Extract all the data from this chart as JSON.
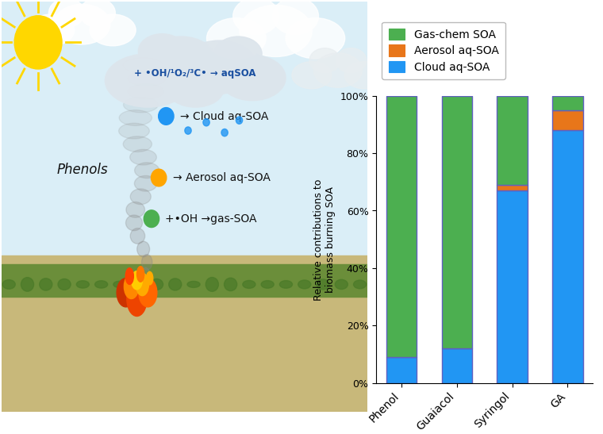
{
  "categories": [
    "Phenol",
    "Guaiacol",
    "Syringol",
    "GA"
  ],
  "cloud_aq_soa": [
    9,
    12,
    67,
    88
  ],
  "aerosol_aq_soa": [
    0,
    0,
    2,
    7
  ],
  "gas_chem_soa": [
    91,
    88,
    31,
    5
  ],
  "colors": {
    "gas_chem": "#4caf50",
    "aerosol_aq": "#e8761a",
    "cloud_aq": "#2196f3"
  },
  "edge_color": "#6060c0",
  "edge_linewidth": 1.0,
  "ylabel": "Relative contributions to\nbiomass burning SOA",
  "legend": [
    "Gas-chem SOA",
    "Aerosol aq-SOA",
    "Cloud aq-SOA"
  ],
  "yticks": [
    0,
    20,
    40,
    60,
    80,
    100
  ],
  "ylim": [
    0,
    100
  ],
  "bar_width": 0.55,
  "sky_color": "#daeef7",
  "cloud_color": "#f0f4f8",
  "smoke_color": "#b0b0b0",
  "sun_color": "#FFD700",
  "fire_colors": [
    "#FF4500",
    "#FF6600",
    "#FF8C00",
    "#FFA500",
    "#FFD700"
  ],
  "dot_colors": [
    "#2196f3",
    "#FFA500",
    "#4CAF50"
  ],
  "dot_labels": [
    "→ Cloud aq-SOA",
    "→ Aerosol aq-SOA",
    "+•OH →gas-SOA"
  ],
  "cloud_text": "+ •OH/¹O₂/³C• → aqSOA",
  "phenols_label": "Phenols"
}
